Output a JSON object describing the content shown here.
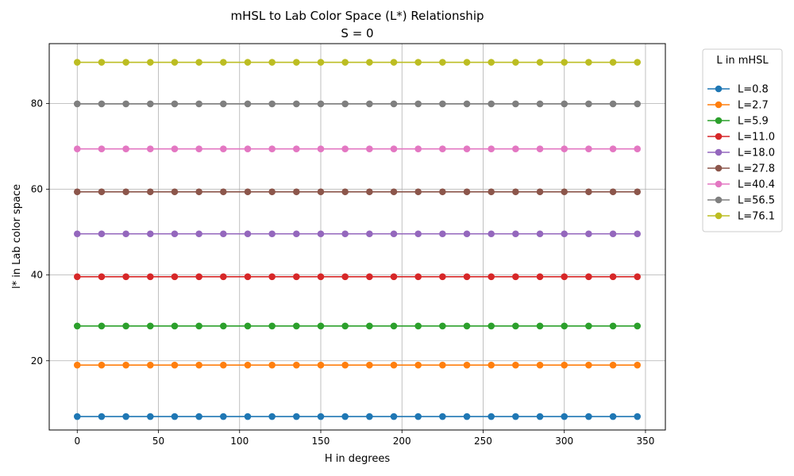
{
  "chart_data": {
    "type": "line",
    "title": "mHSL to Lab Color Space (L*) Relationship",
    "subtitle": "S = 0",
    "xlabel": "H in degrees",
    "ylabel": "l* in Lab color space",
    "xlim": [
      -17.25,
      362.25
    ],
    "ylim": [
      3.86,
      93.95
    ],
    "xticks": [
      0,
      50,
      100,
      150,
      200,
      250,
      300,
      350
    ],
    "yticks": [
      20,
      40,
      60,
      80
    ],
    "grid": true,
    "legend_title": "L in mHSL",
    "legend_placement": "outside-right",
    "x": [
      0,
      15,
      30,
      45,
      60,
      75,
      90,
      105,
      120,
      135,
      150,
      165,
      180,
      195,
      210,
      225,
      240,
      255,
      270,
      285,
      300,
      315,
      330,
      345
    ],
    "series": [
      {
        "name": "L=0.8",
        "color": "#1f77b4",
        "value": 7.0
      },
      {
        "name": "L=2.7",
        "color": "#ff7f0e",
        "value": 19.0
      },
      {
        "name": "L=5.9",
        "color": "#2ca02c",
        "value": 28.1
      },
      {
        "name": "L=11.0",
        "color": "#d62728",
        "value": 39.6
      },
      {
        "name": "L=18.0",
        "color": "#9467bd",
        "value": 49.6
      },
      {
        "name": "L=27.8",
        "color": "#8c564b",
        "value": 59.4
      },
      {
        "name": "L=40.4",
        "color": "#e377c2",
        "value": 69.4
      },
      {
        "name": "L=56.5",
        "color": "#7f7f7f",
        "value": 79.9
      },
      {
        "name": "L=76.1",
        "color": "#bcbd22",
        "value": 89.6
      }
    ]
  }
}
